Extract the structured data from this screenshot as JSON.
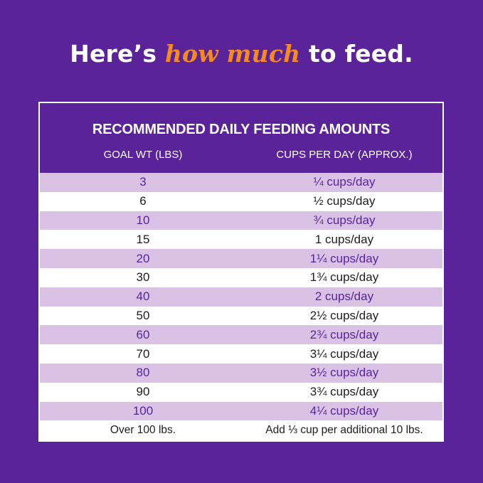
{
  "headline": {
    "prefix": "Here’s ",
    "emphasis": "how much",
    "suffix": " to feed."
  },
  "table": {
    "title": "RECOMMENDED DAILY FEEDING AMOUNTS",
    "columns": [
      "GOAL WT (LBS)",
      "CUPS PER DAY (APPROX.)"
    ],
    "rows": [
      [
        "3",
        "¼ cups/day"
      ],
      [
        "6",
        "½ cups/day"
      ],
      [
        "10",
        "¾ cups/day"
      ],
      [
        "15",
        "1 cups/day"
      ],
      [
        "20",
        "1¼ cups/day"
      ],
      [
        "30",
        "1¾ cups/day"
      ],
      [
        "40",
        "2 cups/day"
      ],
      [
        "50",
        "2½ cups/day"
      ],
      [
        "60",
        "2¾ cups/day"
      ],
      [
        "70",
        "3¼ cups/day"
      ],
      [
        "80",
        "3½ cups/day"
      ],
      [
        "90",
        "3¾ cups/day"
      ],
      [
        "100",
        "4¼ cups/day"
      ],
      [
        "Over 100 lbs.",
        "Add ⅓ cup per additional 10 lbs."
      ]
    ]
  },
  "colors": {
    "background": "#5a239a",
    "accent": "#f58a1f",
    "row_alt": "#d9c2e4"
  }
}
